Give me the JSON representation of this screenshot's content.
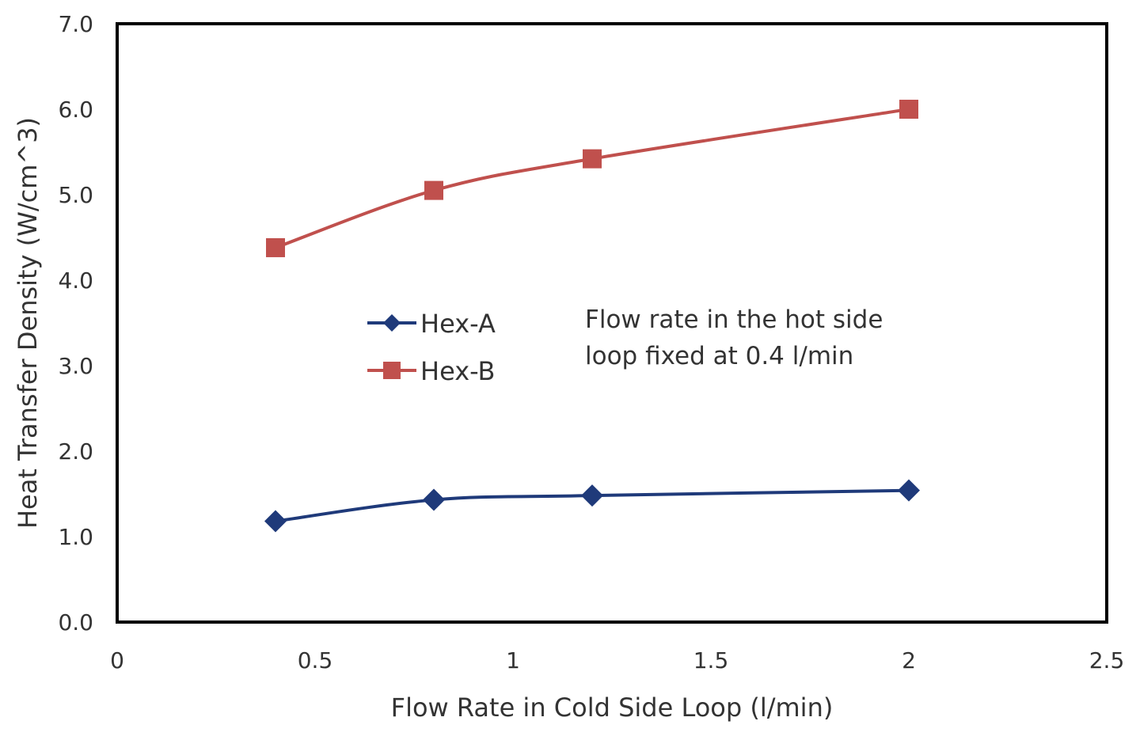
{
  "chart_data": {
    "type": "line",
    "title": "",
    "xlabel": "Flow Rate in Cold Side Loop (l/min)",
    "ylabel": "Heat Transfer Density (W/cm^3)",
    "xlim": [
      0,
      2.5
    ],
    "ylim": [
      0,
      7
    ],
    "xticks": [
      "0",
      "0.5",
      "1",
      "1.5",
      "2",
      "2.5"
    ],
    "yticks": [
      "0.0",
      "1.0",
      "2.0",
      "3.0",
      "4.0",
      "5.0",
      "6.0",
      "7.0"
    ],
    "grid": false,
    "legend_position": "center-left",
    "annotation": [
      "Flow rate in the hot side",
      "loop fixed at 0.4 l/min"
    ],
    "series": [
      {
        "name": "Hex-A",
        "marker": "diamond",
        "color": "#1f3a7a",
        "x": [
          0.4,
          0.8,
          1.2,
          2.0
        ],
        "y": [
          1.18,
          1.43,
          1.48,
          1.54
        ]
      },
      {
        "name": "Hex-B",
        "marker": "square",
        "color": "#c0504d",
        "x": [
          0.4,
          0.8,
          1.2,
          2.0
        ],
        "y": [
          4.38,
          5.05,
          5.42,
          6.0
        ]
      }
    ]
  }
}
